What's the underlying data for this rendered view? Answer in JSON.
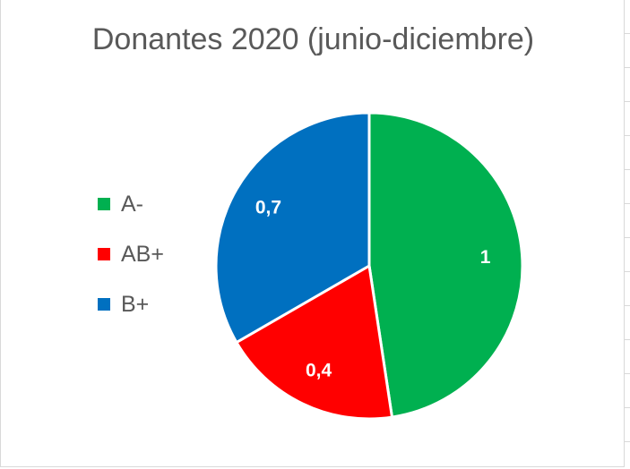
{
  "chart_data": {
    "type": "pie",
    "title": "Donantes 2020 (junio-diciembre)",
    "categories": [
      "A-",
      "AB+",
      "B+"
    ],
    "values": [
      1,
      0.4,
      0.7
    ],
    "value_labels": [
      "1",
      "0,4",
      "0,7"
    ],
    "colors": [
      "#00b050",
      "#ff0000",
      "#0070c0"
    ],
    "legend_position": "left",
    "data_label_color": "#ffffff"
  }
}
